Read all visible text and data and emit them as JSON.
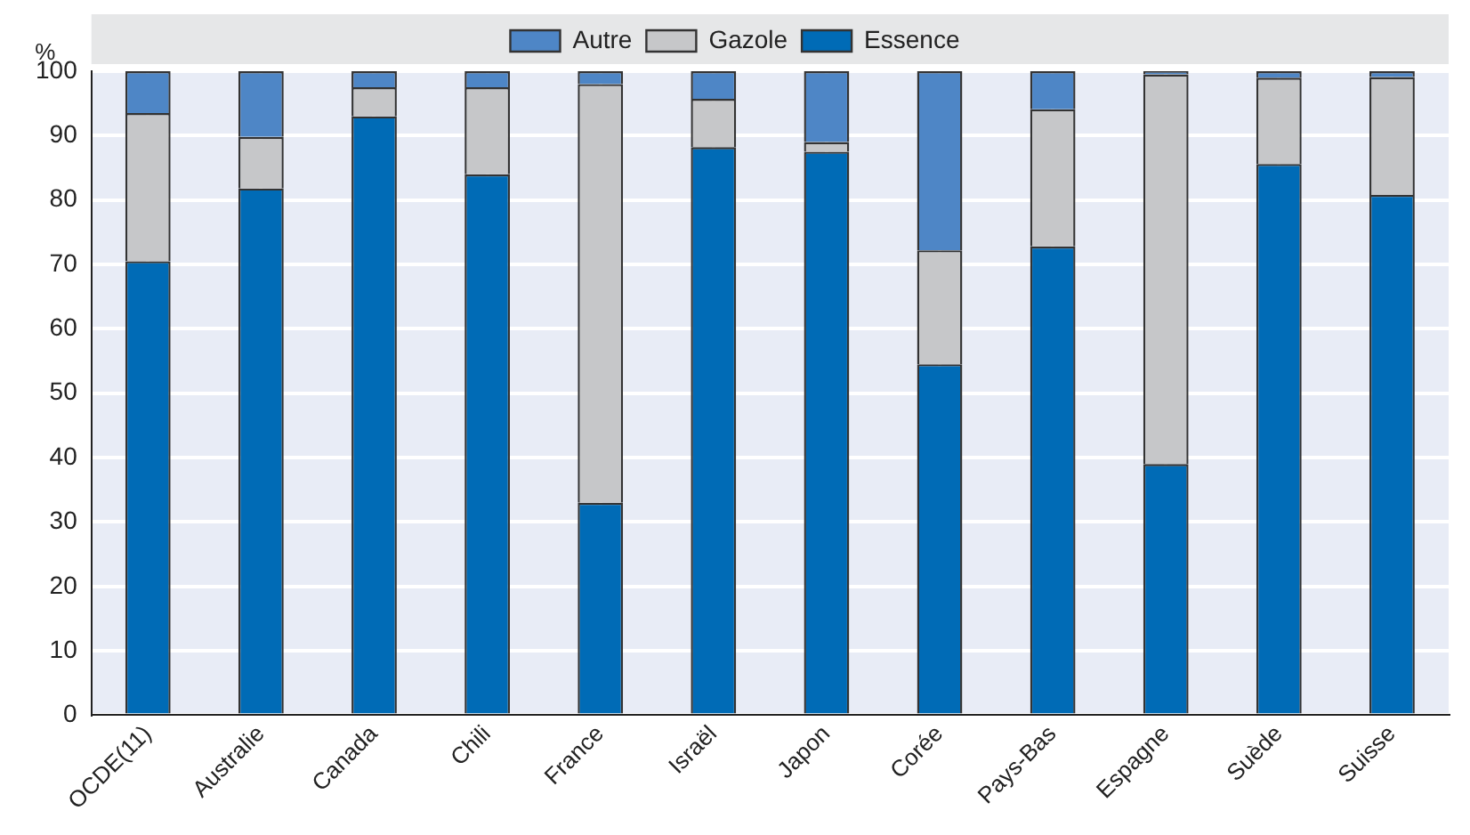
{
  "chart_data": {
    "type": "bar",
    "stacked": true,
    "ylabel": "%",
    "categories": [
      "OCDE(11)",
      "Australie",
      "Canada",
      "Chili",
      "France",
      "Israël",
      "Japon",
      "Corée",
      "Pays-Bas",
      "Espagne",
      "Suède",
      "Suisse"
    ],
    "series": [
      {
        "name": "Essence",
        "color": "#006bb6",
        "values": [
          70.5,
          81.8,
          93,
          84,
          33,
          88.2,
          87.5,
          54.5,
          72.8,
          39,
          85.6,
          80.8
        ]
      },
      {
        "name": "Gazole",
        "color": "#c6c7c9",
        "values": [
          23,
          8,
          4.5,
          13.5,
          65,
          7.5,
          1.5,
          17.7,
          21.3,
          60.5,
          13.4,
          18.3
        ]
      },
      {
        "name": "Autre",
        "color": "#4e86c6",
        "values": [
          6.5,
          10.2,
          2.5,
          2.5,
          2,
          4.3,
          11,
          27.8,
          5.9,
          0.5,
          1,
          0.9
        ]
      }
    ],
    "ylim": [
      0,
      100
    ],
    "yticks": [
      0,
      10,
      20,
      30,
      40,
      50,
      60,
      70,
      80,
      90,
      100
    ],
    "grid": true,
    "legend": "top"
  }
}
